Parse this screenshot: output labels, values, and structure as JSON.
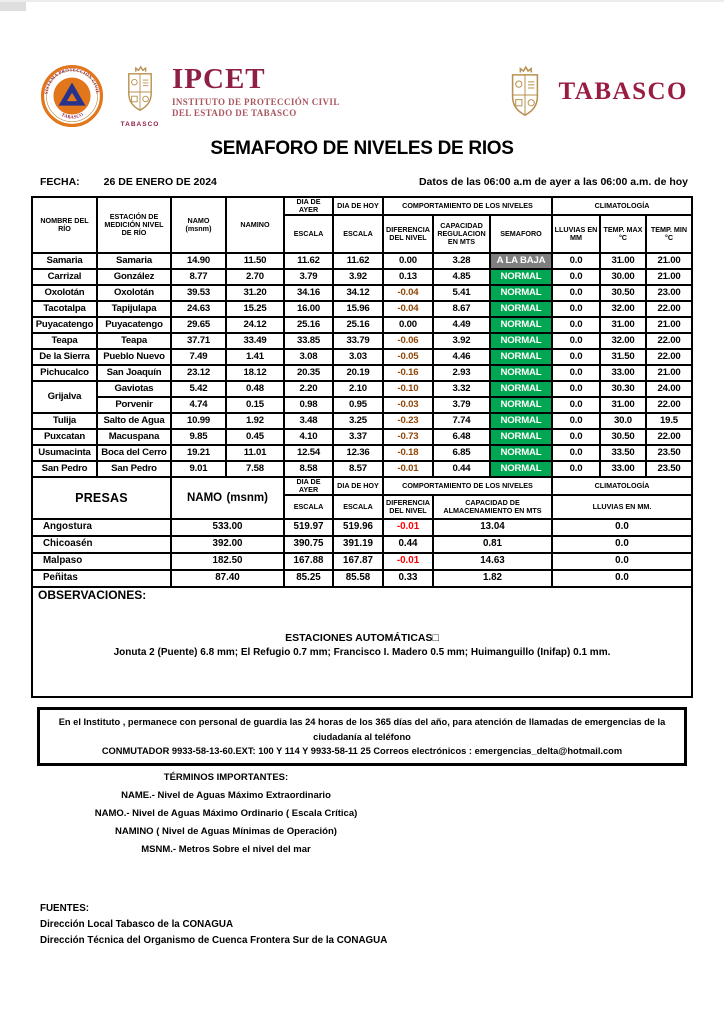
{
  "page": {
    "title": "SEMAFORO DE NIVELES DE RIOS",
    "fecha_label": "FECHA:",
    "fecha_value": "26 DE ENERO DE 2024",
    "datos_note": "Datos de las 06:00 a.m de ayer a las 06:00 a.m. de hoy"
  },
  "branding": {
    "ipcet_acronym": "IPCET",
    "ipcet_line1": "INSTITUTO DE PROTECCIÓN CIVIL",
    "ipcet_line2": "DEL ESTADO DE TABASCO",
    "seal_top_text": "SISTEMA PROTECCIÓN CIVIL",
    "seal_bottom_text": "TABASCO",
    "left_crest_caption": "TABASCO",
    "right_wordmark": "TABASCO",
    "colors": {
      "maroon": "#8E2044",
      "wordmark_maroon": "#9A1C40",
      "subtitle_red": "#A9565F",
      "seal_orange": "#E2761B",
      "seal_blue": "#27348B",
      "crest_gold": "#B8904F"
    }
  },
  "rivers_table": {
    "col_headers": {
      "nombre": "NOMBRE DEL RÍO",
      "estacion": "ESTACIÓN DE MEDICIÓN NIVEL DE RÍO",
      "namo": "NAMO",
      "namo_unit": "(msnm)",
      "namino": "NAMINO",
      "dia_ayer": "DIA DE AYER",
      "dia_hoy": "DIA DE HOY",
      "escala": "ESCALA",
      "comportamiento": "COMPORTAMIENTO DE LOS NIVELES",
      "diferencia": "DIFERENCIA DEL NIVEL",
      "capacidad": "CAPACIDAD REGULACION EN MTS",
      "semaforo": "SEMAFORO",
      "climatologia": "CLIMATOLOGÍA",
      "lluvias": "LLUVIAS EN MM",
      "temp_max": "TEMP. MAX",
      "temp_max_unit": "°C",
      "temp_min": "TEMP.  MIN °C"
    },
    "semaforo_colors": {
      "NORMAL": "#00A651",
      "A LA BAJA": "#7F7F7F"
    },
    "negative_color": "#8F4708",
    "rows": [
      {
        "name": "Samaria",
        "station": "Samaria",
        "namo": "14.90",
        "namino": "11.50",
        "ayer": "11.62",
        "hoy": "11.62",
        "dif": "0.00",
        "capacidad": "3.28",
        "semaforo": "A LA BAJA",
        "lluvias": "0.0",
        "temp_max": "31.00",
        "temp_min": "21.00"
      },
      {
        "name": "Carrizal",
        "station": "González",
        "namo": "8.77",
        "namino": "2.70",
        "ayer": "3.79",
        "hoy": "3.92",
        "dif": "0.13",
        "capacidad": "4.85",
        "semaforo": "NORMAL",
        "lluvias": "0.0",
        "temp_max": "30.00",
        "temp_min": "21.00"
      },
      {
        "name": "Oxolotán",
        "station": "Oxolotán",
        "namo": "39.53",
        "namino": "31.20",
        "ayer": "34.16",
        "hoy": "34.12",
        "dif": "-0.04",
        "capacidad": "5.41",
        "semaforo": "NORMAL",
        "lluvias": "0.0",
        "temp_max": "30.50",
        "temp_min": "23.00"
      },
      {
        "name": "Tacotalpa",
        "station": "Tapijulapa",
        "namo": "24.63",
        "namino": "15.25",
        "ayer": "16.00",
        "hoy": "15.96",
        "dif": "-0.04",
        "capacidad": "8.67",
        "semaforo": "NORMAL",
        "lluvias": "0.0",
        "temp_max": "32.00",
        "temp_min": "22.00"
      },
      {
        "name": "Puyacatengo",
        "station": "Puyacatengo",
        "namo": "29.65",
        "namino": "24.12",
        "ayer": "25.16",
        "hoy": "25.16",
        "dif": "0.00",
        "capacidad": "4.49",
        "semaforo": "NORMAL",
        "lluvias": "0.0",
        "temp_max": "31.00",
        "temp_min": "21.00"
      },
      {
        "name": "Teapa",
        "station": "Teapa",
        "namo": "37.71",
        "namino": "33.49",
        "ayer": "33.85",
        "hoy": "33.79",
        "dif": "-0.06",
        "capacidad": "3.92",
        "semaforo": "NORMAL",
        "lluvias": "0.0",
        "temp_max": "32.00",
        "temp_min": "22.00"
      },
      {
        "name": "De la Sierra",
        "station": "Pueblo Nuevo",
        "namo": "7.49",
        "namino": "1.41",
        "ayer": "3.08",
        "hoy": "3.03",
        "dif": "-0.05",
        "capacidad": "4.46",
        "semaforo": "NORMAL",
        "lluvias": "0.0",
        "temp_max": "31.50",
        "temp_min": "22.00"
      },
      {
        "name": "Pichucalco",
        "station": "San Joaquín",
        "namo": "23.12",
        "namino": "18.12",
        "ayer": "20.35",
        "hoy": "20.19",
        "dif": "-0.16",
        "capacidad": "2.93",
        "semaforo": "NORMAL",
        "lluvias": "0.0",
        "temp_max": "33.00",
        "temp_min": "21.00"
      },
      {
        "name": "Grijalva",
        "name_rowspan": 2,
        "station": "Gaviotas",
        "namo": "5.42",
        "namino": "0.48",
        "ayer": "2.20",
        "hoy": "2.10",
        "dif": "-0.10",
        "capacidad": "3.32",
        "semaforo": "NORMAL",
        "lluvias": "0.0",
        "temp_max": "30.30",
        "temp_min": "24.00"
      },
      {
        "name": null,
        "station": "Porvenir",
        "namo": "4.74",
        "namino": "0.15",
        "ayer": "0.98",
        "hoy": "0.95",
        "dif": "-0.03",
        "capacidad": "3.79",
        "semaforo": "NORMAL",
        "lluvias": "0.0",
        "temp_max": "31.00",
        "temp_min": "22.00"
      },
      {
        "name": "Tulija",
        "station": "Salto de Agua",
        "namo": "10.99",
        "namino": "1.92",
        "ayer": "3.48",
        "hoy": "3.25",
        "dif": "-0.23",
        "capacidad": "7.74",
        "semaforo": "NORMAL",
        "lluvias": "0.0",
        "temp_max": "30.0",
        "temp_min": "19.5"
      },
      {
        "name": "Puxcatan",
        "station": "Macuspana",
        "namo": "9.85",
        "namino": "0.45",
        "ayer": "4.10",
        "hoy": "3.37",
        "dif": "-0.73",
        "capacidad": "6.48",
        "semaforo": "NORMAL",
        "lluvias": "0.0",
        "temp_max": "30.50",
        "temp_min": "22.00"
      },
      {
        "name": "Usumacinta",
        "station": "Boca del Cerro",
        "namo": "19.21",
        "namino": "11.01",
        "ayer": "12.54",
        "hoy": "12.36",
        "dif": "-0.18",
        "capacidad": "6.85",
        "semaforo": "NORMAL",
        "lluvias": "0.0",
        "temp_max": "33.50",
        "temp_min": "23.50"
      },
      {
        "name": "San Pedro",
        "station": "San Pedro",
        "namo": "9.01",
        "namino": "7.58",
        "ayer": "8.58",
        "hoy": "8.57",
        "dif": "-0.01",
        "capacidad": "0.44",
        "semaforo": "NORMAL",
        "lluvias": "0.0",
        "temp_max": "33.00",
        "temp_min": "23.50"
      }
    ]
  },
  "presas_table": {
    "headers": {
      "presas": "PRESAS",
      "namo": "NAMO",
      "namo_unit": "(msnm)",
      "dia_ayer": "DIA DE AYER",
      "dia_hoy": "DIA DE HOY",
      "escala": "ESCALA",
      "comportamiento": "COMPORTAMIENTO DE LOS NIVELES",
      "diferencia": "DIFERENCIA DEL NIVEL",
      "capacidad": "CAPACIDAD DE ALMACENAMIENTO EN MTS",
      "climatologia": "CLIMATOLOGÍA",
      "lluvias": "LLUVIAS EN MM."
    },
    "negative_color": "#FF0000",
    "rows": [
      {
        "name": "Angostura",
        "namo": "533.00",
        "ayer": "519.97",
        "hoy": "519.96",
        "dif": "-0.01",
        "capacidad": "13.04",
        "lluvias": "0.0"
      },
      {
        "name": "Chicoasén",
        "namo": "392.00",
        "ayer": "390.75",
        "hoy": "391.19",
        "dif": "0.44",
        "capacidad": "0.81",
        "lluvias": "0.0"
      },
      {
        "name": "Malpaso",
        "namo": "182.50",
        "ayer": "167.88",
        "hoy": "167.87",
        "dif": "-0.01",
        "capacidad": "14.63",
        "lluvias": "0.0"
      },
      {
        "name": "Peñitas",
        "namo": "87.40",
        "ayer": "85.25",
        "hoy": "85.58",
        "dif": "0.33",
        "capacidad": "1.82",
        "lluvias": "0.0"
      }
    ]
  },
  "observaciones": {
    "label": "OBSERVACIONES:",
    "line1": "ESTACIONES AUTOMÁTICAS□",
    "line2": "Jonuta 2 (Puente) 6.8 mm; El Refugio 0.7 mm; Francisco I. Madero 0.5 mm; Huimanguillo (Inifap) 0.1 mm."
  },
  "instituto": {
    "line1": "En el Instituto , permanece con personal de guardia las 24 horas de los 365 días del año, para atención de llamadas de emergencias de la ciudadanía al teléfono",
    "line2": "CONMUTADOR  9933-58-13-60.EXT: 100 Y 114  Y 9933-58-11 25   Correos electrónicos : emergencias_delta@hotmail.com"
  },
  "terminos": {
    "title": "TÉRMINOS IMPORTANTES:",
    "items": [
      "NAME.-  Nivel de Aguas Máximo Extraordinario",
      "NAMO.-  Nivel de Aguas Máximo Ordinario ( Escala Crítica)",
      "NAMINO ( Nivel de Aguas Mínimas de Operación)",
      "MSNM.-  Metros Sobre el nivel del mar"
    ]
  },
  "fuentes": {
    "title": "FUENTES:",
    "items": [
      "Dirección  Local  Tabasco de la  CONAGUA",
      "Dirección  Técnica del  Organismo de Cuenca Frontera Sur  de la CONAGUA"
    ]
  }
}
